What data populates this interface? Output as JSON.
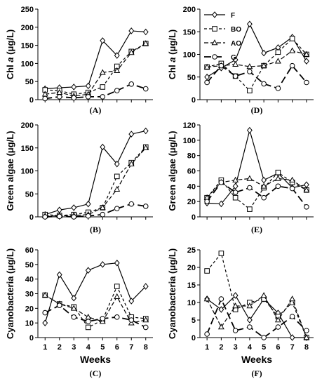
{
  "chart_data": [
    {
      "panel": "(A)",
      "type": "line",
      "ylabel": "Chl a (μg/L)",
      "ylabel_main": "Chl ",
      "ylabel_italic": "a",
      "ylabel_unit": " (μg/L)",
      "xlabel": "",
      "x": [
        1,
        2,
        3,
        4,
        5,
        6,
        7,
        8
      ],
      "xlim": [
        0.5,
        8.5
      ],
      "ylim": [
        0,
        250
      ],
      "yticks": [
        0,
        50,
        100,
        150,
        200,
        250
      ],
      "show_xticks": false,
      "series": [
        {
          "name": "F",
          "values": [
            30,
            33,
            35,
            38,
            163,
            122,
            190,
            187
          ]
        },
        {
          "name": "BO",
          "values": [
            27,
            25,
            15,
            20,
            35,
            92,
            133,
            155
          ]
        },
        {
          "name": "AO",
          "values": [
            15,
            20,
            10,
            15,
            75,
            80,
            130,
            155
          ]
        },
        {
          "name": "G",
          "values": [
            3,
            8,
            5,
            8,
            8,
            25,
            43,
            30
          ]
        }
      ]
    },
    {
      "panel": "(B)",
      "type": "line",
      "ylabel": "Green algae (μg/L)",
      "xlabel": "",
      "x": [
        1,
        2,
        3,
        4,
        5,
        6,
        7,
        8
      ],
      "xlim": [
        0.5,
        8.5
      ],
      "ylim": [
        0,
        200
      ],
      "yticks": [
        0,
        50,
        100,
        150,
        200
      ],
      "show_xticks": false,
      "series": [
        {
          "name": "F",
          "values": [
            5,
            15,
            20,
            28,
            152,
            115,
            180,
            187
          ]
        },
        {
          "name": "BO",
          "values": [
            5,
            3,
            5,
            10,
            20,
            88,
            118,
            152
          ]
        },
        {
          "name": "AO",
          "values": [
            2,
            2,
            3,
            5,
            20,
            60,
            115,
            150
          ]
        },
        {
          "name": "G",
          "values": [
            0,
            1,
            0,
            2,
            5,
            18,
            28,
            23
          ]
        }
      ]
    },
    {
      "panel": "(C)",
      "type": "line",
      "ylabel": "Cyanobacteria (μg/L)",
      "xlabel": "Weeks",
      "x": [
        1,
        2,
        3,
        4,
        5,
        6,
        7,
        8
      ],
      "xlim": [
        0.5,
        8.5
      ],
      "ylim": [
        0,
        60
      ],
      "yticks": [
        0,
        10,
        20,
        30,
        40,
        50,
        60
      ],
      "show_xticks": true,
      "series": [
        {
          "name": "F",
          "values": [
            10,
            43,
            27,
            46,
            50,
            51,
            25,
            35
          ]
        },
        {
          "name": "BO",
          "values": [
            29,
            23,
            21,
            7,
            12,
            35,
            14,
            13
          ]
        },
        {
          "name": "AO",
          "values": [
            29,
            23,
            20,
            14,
            11,
            28,
            10,
            12
          ]
        },
        {
          "name": "G",
          "values": [
            17,
            22,
            14,
            11,
            13,
            14,
            12,
            7
          ]
        }
      ]
    },
    {
      "panel": "(D)",
      "type": "line",
      "ylabel": "Chl a (μg/L)",
      "ylabel_main": "Chl ",
      "ylabel_italic": "a",
      "ylabel_unit": " (μg/L)",
      "xlabel": "",
      "x": [
        1,
        2,
        3,
        4,
        5,
        6,
        7,
        8
      ],
      "xlim": [
        0.5,
        8.5
      ],
      "ylim": [
        0,
        200
      ],
      "yticks": [
        0,
        50,
        100,
        150,
        200
      ],
      "show_xticks": false,
      "legend": {
        "placement": "top-left",
        "entries": [
          "F",
          "BO",
          "AO",
          "G"
        ]
      },
      "series": [
        {
          "name": "F",
          "values": [
            50,
            70,
            88,
            167,
            103,
            115,
            138,
            85
          ]
        },
        {
          "name": "BO",
          "values": [
            72,
            80,
            52,
            20,
            75,
            105,
            135,
            100
          ]
        },
        {
          "name": "AO",
          "values": [
            72,
            75,
            78,
            73,
            75,
            85,
            108,
            100
          ]
        },
        {
          "name": "G",
          "values": [
            38,
            75,
            52,
            62,
            35,
            25,
            75,
            38
          ]
        }
      ]
    },
    {
      "panel": "(E)",
      "type": "line",
      "ylabel": "Green algae (μg/L)",
      "xlabel": "",
      "x": [
        1,
        2,
        3,
        4,
        5,
        6,
        7,
        8
      ],
      "xlim": [
        0.5,
        8.5
      ],
      "ylim": [
        0,
        120
      ],
      "yticks": [
        0,
        20,
        40,
        60,
        80,
        100,
        120
      ],
      "show_xticks": false,
      "series": [
        {
          "name": "F",
          "values": [
            18,
            17,
            40,
            113,
            48,
            57,
            38,
            42
          ]
        },
        {
          "name": "BO",
          "values": [
            25,
            48,
            25,
            10,
            38,
            58,
            45,
            35
          ]
        },
        {
          "name": "AO",
          "values": [
            25,
            45,
            48,
            50,
            40,
            50,
            48,
            35
          ]
        },
        {
          "name": "G",
          "values": [
            20,
            45,
            32,
            38,
            25,
            40,
            37,
            13
          ]
        }
      ]
    },
    {
      "panel": "(F)",
      "type": "line",
      "ylabel": "Cyanobacteria (μg/L)",
      "xlabel": "Weeks",
      "x": [
        1,
        2,
        3,
        4,
        5,
        6,
        7,
        8
      ],
      "xlim": [
        0.5,
        8.5
      ],
      "ylim": [
        0,
        25
      ],
      "yticks": [
        0,
        5,
        10,
        15,
        20,
        25
      ],
      "show_xticks": true,
      "series": [
        {
          "name": "F",
          "values": [
            11,
            8,
            12,
            5,
            11,
            7,
            0,
            0
          ]
        },
        {
          "name": "BO",
          "values": [
            19,
            24,
            8,
            10,
            11,
            6,
            10,
            0
          ]
        },
        {
          "name": "AO",
          "values": [
            11,
            3,
            9,
            9,
            12,
            5,
            11,
            0
          ]
        },
        {
          "name": "G",
          "values": [
            1,
            11,
            2,
            3,
            0,
            3,
            6,
            2
          ]
        }
      ]
    }
  ]
}
